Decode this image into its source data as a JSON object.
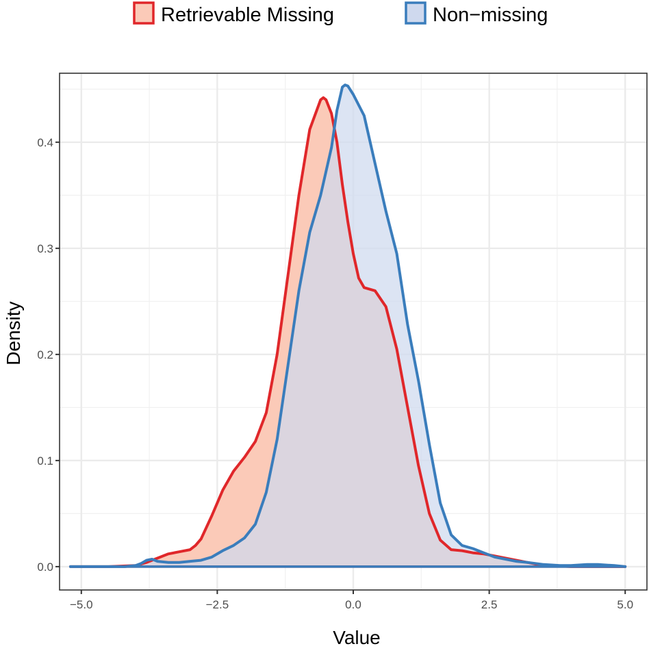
{
  "chart_data": {
    "type": "area",
    "title": "",
    "xlabel": "Value",
    "ylabel": "Density",
    "xlim": [
      -5.4,
      5.4
    ],
    "ylim": [
      -0.022,
      0.465
    ],
    "x_ticks": [
      -5.0,
      -2.5,
      0.0,
      2.5,
      5.0
    ],
    "x_tick_labels": [
      "−5.0",
      "−2.5",
      "0.0",
      "2.5",
      "5.0"
    ],
    "y_ticks": [
      0.0,
      0.1,
      0.2,
      0.3,
      0.4
    ],
    "y_tick_labels": [
      "0.0",
      "0.1",
      "0.2",
      "0.3",
      "0.4"
    ],
    "grid": true,
    "legend_position": "top",
    "series": [
      {
        "name": "Retrievable Missing",
        "line_color": "#e0272a",
        "fill_color": "#fbcab8",
        "x": [
          -5.2,
          -4.5,
          -4.0,
          -3.8,
          -3.6,
          -3.4,
          -3.2,
          -3.0,
          -2.9,
          -2.8,
          -2.6,
          -2.4,
          -2.2,
          -2.0,
          -1.8,
          -1.6,
          -1.4,
          -1.2,
          -1.0,
          -0.8,
          -0.6,
          -0.55,
          -0.5,
          -0.4,
          -0.3,
          -0.2,
          -0.1,
          0.0,
          0.1,
          0.2,
          0.4,
          0.6,
          0.8,
          1.0,
          1.2,
          1.4,
          1.6,
          1.8,
          2.0,
          2.2,
          2.4,
          2.6,
          2.8,
          3.0,
          3.2,
          3.4,
          3.6,
          4.0,
          4.5,
          5.0
        ],
        "y": [
          0.0,
          0.0,
          0.001,
          0.004,
          0.008,
          0.012,
          0.014,
          0.016,
          0.02,
          0.026,
          0.048,
          0.072,
          0.09,
          0.103,
          0.118,
          0.145,
          0.2,
          0.275,
          0.35,
          0.412,
          0.44,
          0.442,
          0.44,
          0.427,
          0.4,
          0.36,
          0.325,
          0.295,
          0.272,
          0.263,
          0.26,
          0.245,
          0.205,
          0.15,
          0.095,
          0.05,
          0.025,
          0.016,
          0.015,
          0.013,
          0.012,
          0.01,
          0.008,
          0.006,
          0.004,
          0.002,
          0.001,
          0.0,
          0.0,
          0.0
        ]
      },
      {
        "name": "Non−missing",
        "line_color": "#3a7dbc",
        "fill_color": "#cfd9ee",
        "x": [
          -5.2,
          -4.5,
          -4.2,
          -4.0,
          -3.9,
          -3.8,
          -3.7,
          -3.6,
          -3.4,
          -3.2,
          -3.0,
          -2.8,
          -2.6,
          -2.4,
          -2.2,
          -2.0,
          -1.8,
          -1.6,
          -1.4,
          -1.2,
          -1.0,
          -0.8,
          -0.6,
          -0.4,
          -0.3,
          -0.2,
          -0.15,
          -0.1,
          0.0,
          0.2,
          0.4,
          0.6,
          0.8,
          1.0,
          1.2,
          1.4,
          1.6,
          1.8,
          2.0,
          2.2,
          2.4,
          2.6,
          2.8,
          3.0,
          3.2,
          3.5,
          3.8,
          4.0,
          4.3,
          4.5,
          4.8,
          5.0
        ],
        "y": [
          0.0,
          0.0,
          0.0,
          0.001,
          0.003,
          0.006,
          0.007,
          0.005,
          0.004,
          0.004,
          0.005,
          0.006,
          0.009,
          0.015,
          0.02,
          0.027,
          0.04,
          0.07,
          0.12,
          0.19,
          0.26,
          0.315,
          0.35,
          0.395,
          0.43,
          0.452,
          0.454,
          0.453,
          0.445,
          0.425,
          0.38,
          0.335,
          0.295,
          0.228,
          0.175,
          0.115,
          0.06,
          0.03,
          0.02,
          0.017,
          0.013,
          0.009,
          0.007,
          0.005,
          0.004,
          0.002,
          0.001,
          0.001,
          0.002,
          0.002,
          0.001,
          0.0
        ]
      }
    ]
  }
}
